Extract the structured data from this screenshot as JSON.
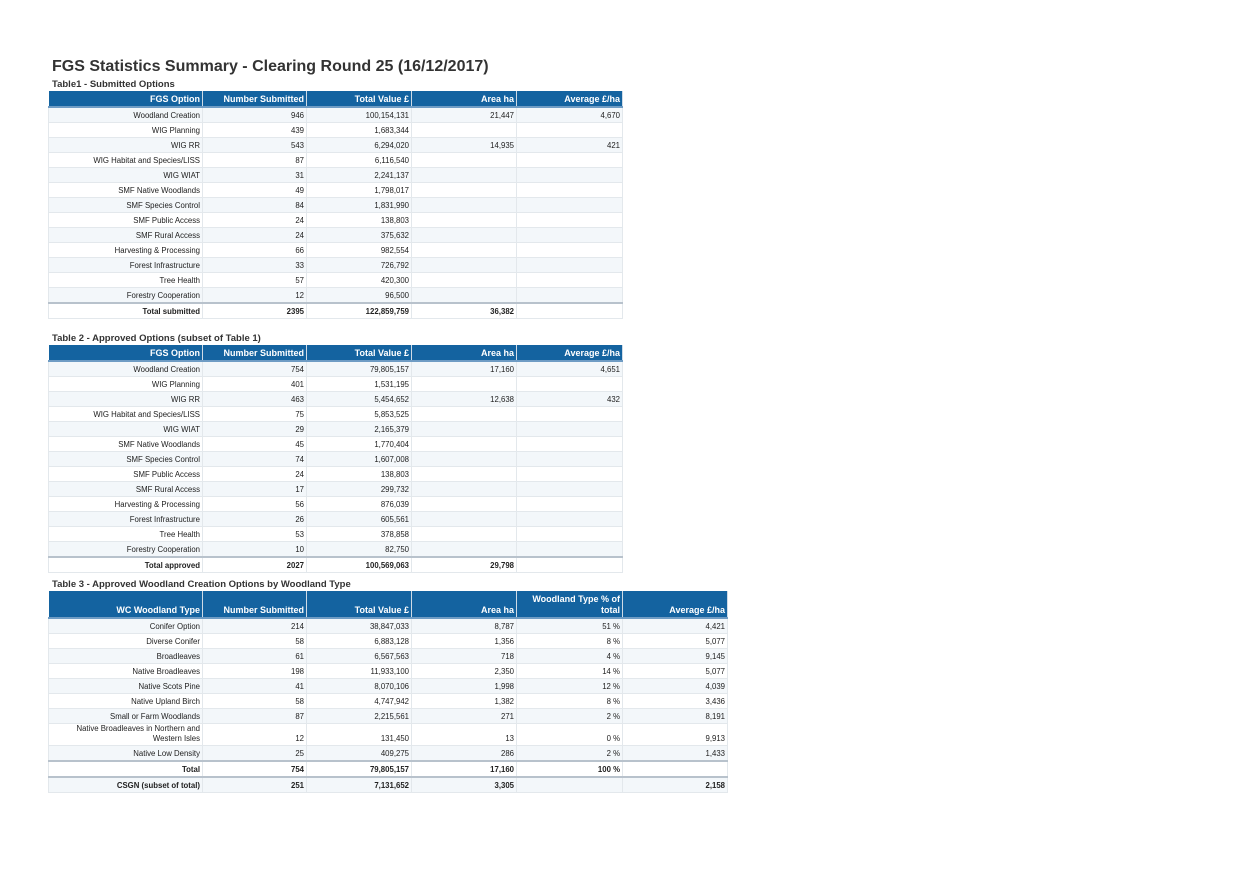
{
  "title": "FGS Statistics Summary - Clearing Round 25 (16/12/2017)",
  "colors": {
    "header_bg": "#1463a0",
    "header_text": "#ffffff",
    "alt_row": "#f3f7fa"
  },
  "tables": [
    {
      "caption": "Table1 - Submitted Options",
      "columns": [
        "FGS Option",
        "Number Submitted",
        "Total Value £",
        "Area ha",
        "Average £/ha"
      ],
      "rows": [
        [
          "Woodland Creation",
          "946",
          "100,154,131",
          "21,447",
          "4,670"
        ],
        [
          "WIG Planning",
          "439",
          "1,683,344",
          "",
          ""
        ],
        [
          "WIG RR",
          "543",
          "6,294,020",
          "14,935",
          "421"
        ],
        [
          "WIG Habitat and Species/LISS",
          "87",
          "6,116,540",
          "",
          ""
        ],
        [
          "WIG WIAT",
          "31",
          "2,241,137",
          "",
          ""
        ],
        [
          "SMF Native Woodlands",
          "49",
          "1,798,017",
          "",
          ""
        ],
        [
          "SMF Species Control",
          "84",
          "1,831,990",
          "",
          ""
        ],
        [
          "SMF Public Access",
          "24",
          "138,803",
          "",
          ""
        ],
        [
          "SMF Rural Access",
          "24",
          "375,632",
          "",
          ""
        ],
        [
          "Harvesting & Processing",
          "66",
          "982,554",
          "",
          ""
        ],
        [
          "Forest Infrastructure",
          "33",
          "726,792",
          "",
          ""
        ],
        [
          "Tree Health",
          "57",
          "420,300",
          "",
          ""
        ],
        [
          "Forestry Cooperation",
          "12",
          "96,500",
          "",
          ""
        ]
      ],
      "totals": [
        [
          "Total submitted",
          "2395",
          "122,859,759",
          "36,382",
          ""
        ]
      ]
    },
    {
      "caption": "Table 2 - Approved Options (subset of Table 1)",
      "columns": [
        "FGS Option",
        "Number Submitted",
        "Total Value £",
        "Area ha",
        "Average £/ha"
      ],
      "rows": [
        [
          "Woodland Creation",
          "754",
          "79,805,157",
          "17,160",
          "4,651"
        ],
        [
          "WIG Planning",
          "401",
          "1,531,195",
          "",
          ""
        ],
        [
          "WIG RR",
          "463",
          "5,454,652",
          "12,638",
          "432"
        ],
        [
          "WIG Habitat and Species/LISS",
          "75",
          "5,853,525",
          "",
          ""
        ],
        [
          "WIG WIAT",
          "29",
          "2,165,379",
          "",
          ""
        ],
        [
          "SMF Native Woodlands",
          "45",
          "1,770,404",
          "",
          ""
        ],
        [
          "SMF Species Control",
          "74",
          "1,607,008",
          "",
          ""
        ],
        [
          "SMF Public Access",
          "24",
          "138,803",
          "",
          ""
        ],
        [
          "SMF Rural Access",
          "17",
          "299,732",
          "",
          ""
        ],
        [
          "Harvesting & Processing",
          "56",
          "876,039",
          "",
          ""
        ],
        [
          "Forest Infrastructure",
          "26",
          "605,561",
          "",
          ""
        ],
        [
          "Tree Health",
          "53",
          "378,858",
          "",
          ""
        ],
        [
          "Forestry Cooperation",
          "10",
          "82,750",
          "",
          ""
        ]
      ],
      "totals": [
        [
          "Total approved",
          "2027",
          "100,569,063",
          "29,798",
          ""
        ]
      ]
    },
    {
      "caption": "Table 3 - Approved Woodland Creation Options by Woodland Type",
      "columns": [
        "WC Woodland Type",
        "Number Submitted",
        "Total Value £",
        "Area ha",
        "Woodland Type % of total",
        "Average £/ha"
      ],
      "rows": [
        [
          "Conifer Option",
          "214",
          "38,847,033",
          "8,787",
          "51 %",
          "4,421"
        ],
        [
          "Diverse Conifer",
          "58",
          "6,883,128",
          "1,356",
          "8 %",
          "5,077"
        ],
        [
          "Broadleaves",
          "61",
          "6,567,563",
          "718",
          "4 %",
          "9,145"
        ],
        [
          "Native Broadleaves",
          "198",
          "11,933,100",
          "2,350",
          "14 %",
          "5,077"
        ],
        [
          "Native Scots Pine",
          "41",
          "8,070,106",
          "1,998",
          "12 %",
          "4,039"
        ],
        [
          "Native Upland Birch",
          "58",
          "4,747,942",
          "1,382",
          "8 %",
          "3,436"
        ],
        [
          "Small or Farm Woodlands",
          "87",
          "2,215,561",
          "271",
          "2 %",
          "8,191"
        ],
        [
          "Native Broadleaves in Northern and Western Isles",
          "12",
          "131,450",
          "13",
          "0 %",
          "9,913"
        ],
        [
          "Native Low Density",
          "25",
          "409,275",
          "286",
          "2 %",
          "1,433"
        ]
      ],
      "totals": [
        [
          "Total",
          "754",
          "79,805,157",
          "17,160",
          "100 %",
          ""
        ],
        [
          "CSGN (subset of total)",
          "251",
          "7,131,652",
          "3,305",
          "",
          "2,158"
        ]
      ]
    }
  ]
}
